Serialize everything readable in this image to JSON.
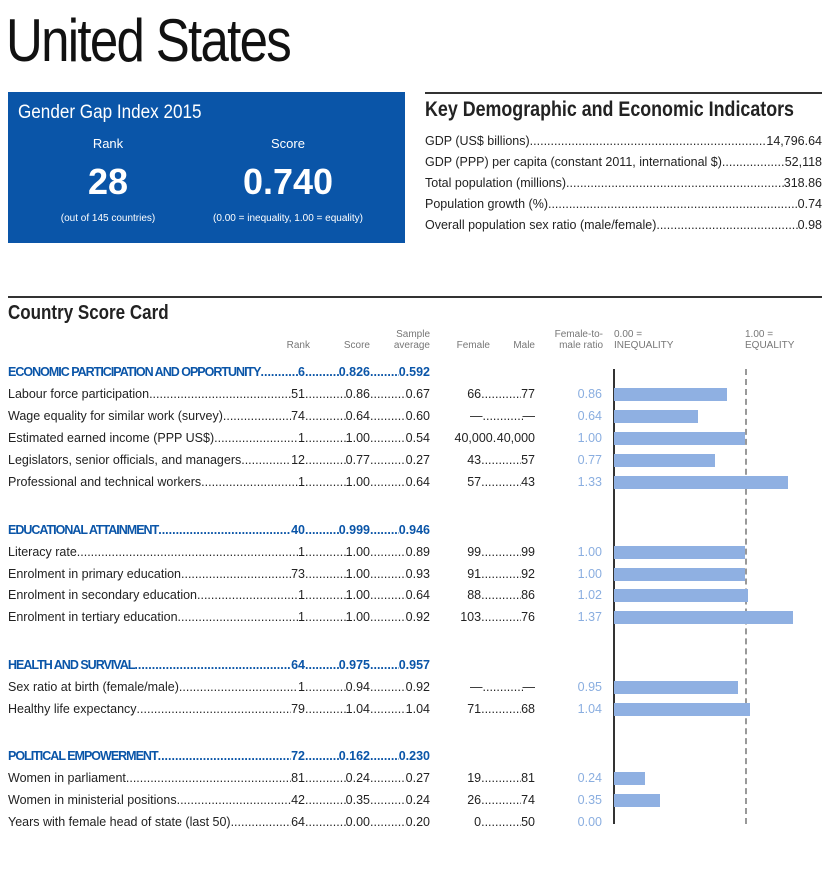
{
  "title": "United States",
  "gender_gap": {
    "heading": "Gender Gap Index 2015",
    "rank_label": "Rank",
    "rank": "28",
    "rank_note": "(out of 145 countries)",
    "score_label": "Score",
    "score": "0.740",
    "score_note": "(0.00 = inequality, 1.00 = equality)"
  },
  "indicators": {
    "heading": "Key Demographic and Economic Indicators",
    "rows": [
      {
        "label": "GDP (US$ billions)",
        "value": "14,796.64"
      },
      {
        "label": "GDP (PPP) per capita (constant 2011, international $)",
        "value": "52,118"
      },
      {
        "label": "Total population (millions)",
        "value": "318.86"
      },
      {
        "label": "Population growth (%)",
        "value": "0.74"
      },
      {
        "label": "Overall population sex ratio (male/female)",
        "value": "0.98"
      }
    ]
  },
  "scorecard": {
    "heading": "Country Score Card",
    "headers": {
      "rank": "Rank",
      "score": "Score",
      "avg": "Sample average",
      "female": "Female",
      "male": "Male",
      "ratio": "Female-to-male ratio",
      "ineq": "0.00 = INEQUALITY",
      "eq": "1.00 = EQUALITY"
    },
    "colors": {
      "section": "#0a55a8",
      "bar": "#8fb0e2",
      "ggi_box": "#0a55a8"
    },
    "sections": [
      {
        "label": "ECONOMIC PARTICIPATION AND OPPORTUNITY",
        "rank": "6",
        "score": "0.826",
        "avg": "0.592",
        "rows": [
          {
            "label": "Labour force participation",
            "rank": "51",
            "score": "0.86",
            "avg": "0.67",
            "female": "66",
            "male": "77",
            "ratio": "0.86"
          },
          {
            "label": "Wage equality for similar work (survey)",
            "rank": "74",
            "score": "0.64",
            "avg": "0.60",
            "female": "—",
            "male": "—",
            "ratio": "0.64"
          },
          {
            "label": "Estimated earned income (PPP US$)",
            "rank": "1",
            "score": "1.00",
            "avg": "0.54",
            "female": "40,000",
            "male": "40,000",
            "ratio": "1.00"
          },
          {
            "label": "Legislators, senior officials, and managers",
            "rank": "12",
            "score": "0.77",
            "avg": "0.27",
            "female": "43",
            "male": "57",
            "ratio": "0.77"
          },
          {
            "label": "Professional and technical workers",
            "rank": "1",
            "score": "1.00",
            "avg": "0.64",
            "female": "57",
            "male": "43",
            "ratio": "1.33"
          }
        ]
      },
      {
        "label": "EDUCATIONAL ATTAINMENT",
        "rank": "40",
        "score": "0.999",
        "avg": "0.946",
        "rows": [
          {
            "label": "Literacy rate",
            "rank": "1",
            "score": "1.00",
            "avg": "0.89",
            "female": "99",
            "male": "99",
            "ratio": "1.00"
          },
          {
            "label": "Enrolment in primary education",
            "rank": "73",
            "score": "1.00",
            "avg": "0.93",
            "female": "91",
            "male": "92",
            "ratio": "1.00"
          },
          {
            "label": "Enrolment in secondary education",
            "rank": "1",
            "score": "1.00",
            "avg": "0.64",
            "female": "88",
            "male": "86",
            "ratio": "1.02"
          },
          {
            "label": "Enrolment in tertiary education",
            "rank": "1",
            "score": "1.00",
            "avg": "0.92",
            "female": "103",
            "male": "76",
            "ratio": "1.37"
          }
        ]
      },
      {
        "label": "HEALTH AND SURVIVAL",
        "rank": "64",
        "score": "0.975",
        "avg": "0.957",
        "rows": [
          {
            "label": "Sex ratio at birth (female/male)",
            "rank": "1",
            "score": "0.94",
            "avg": "0.92",
            "female": "—",
            "male": "—",
            "ratio": "0.95"
          },
          {
            "label": "Healthy life expectancy",
            "rank": "79",
            "score": "1.04",
            "avg": "1.04",
            "female": "71",
            "male": "68",
            "ratio": "1.04"
          }
        ]
      },
      {
        "label": "POLITICAL EMPOWERMENT",
        "rank": "72",
        "score": "0.162",
        "avg": "0.230",
        "rows": [
          {
            "label": "Women in parliament",
            "rank": "81",
            "score": "0.24",
            "avg": "0.27",
            "female": "19",
            "male": "81",
            "ratio": "0.24"
          },
          {
            "label": "Women in ministerial positions",
            "rank": "42",
            "score": "0.35",
            "avg": "0.24",
            "female": "26",
            "male": "74",
            "ratio": "0.35"
          },
          {
            "label": "Years with female head of state (last 50)",
            "rank": "64",
            "score": "0.00",
            "avg": "0.20",
            "female": "0",
            "male": "50",
            "ratio": "0.00"
          }
        ]
      }
    ]
  }
}
